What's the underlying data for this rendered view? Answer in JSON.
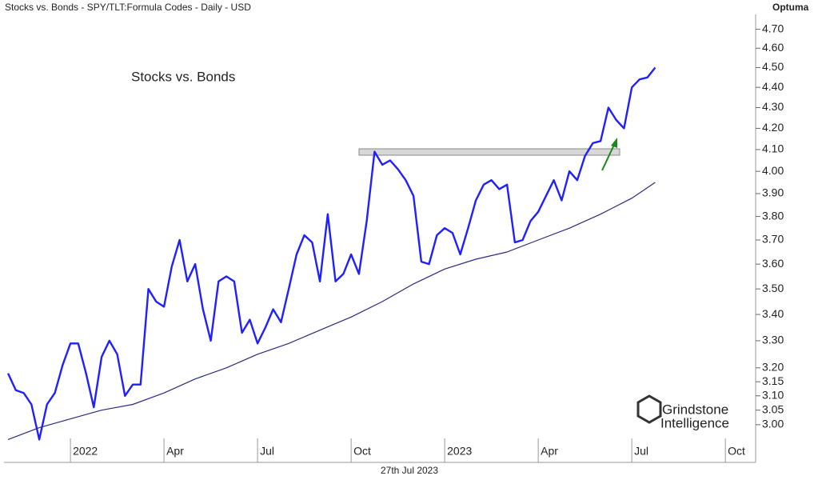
{
  "chart_data": {
    "type": "line",
    "header": "Stocks vs. Bonds - SPY/TLT:Formula Codes - Daily - USD",
    "title": "Stocks vs. Bonds",
    "brand": "Optuma",
    "logo": [
      "Grindstone",
      "Intelligence"
    ],
    "date_label": "27th Jul 2023",
    "log_scale": true,
    "xlim": [
      -2.13,
      21.97
    ],
    "xticks": [
      {
        "value": 0,
        "label": "2022"
      },
      {
        "value": 3,
        "label": "Apr"
      },
      {
        "value": 6,
        "label": "Jul"
      },
      {
        "value": 9,
        "label": "Oct"
      },
      {
        "value": 12,
        "label": "2023"
      },
      {
        "value": 15,
        "label": "Apr"
      },
      {
        "value": 18,
        "label": "Jul"
      },
      {
        "value": 21,
        "label": "Oct"
      }
    ],
    "ylim": [
      2.935,
      4.78
    ],
    "yticks": [
      {
        "value": 3.0,
        "label": "3.00"
      },
      3.05,
      {
        "value": 3.1,
        "label": "3.10"
      },
      3.15,
      {
        "value": 3.2,
        "label": "3.20"
      },
      {
        "value": 3.3,
        "label": "3.30"
      },
      {
        "value": 3.4,
        "label": "3.40"
      },
      {
        "value": 3.5,
        "label": "3.50"
      },
      {
        "value": 3.6,
        "label": "3.60"
      },
      {
        "value": 3.7,
        "label": "3.70"
      },
      {
        "value": 3.8,
        "label": "3.80"
      },
      {
        "value": 3.9,
        "label": "3.90"
      },
      {
        "value": 4.0,
        "label": "4.00"
      },
      {
        "value": 4.1,
        "label": "4.10"
      },
      {
        "value": 4.2,
        "label": "4.20"
      },
      {
        "value": 4.3,
        "label": "4.30"
      },
      {
        "value": 4.4,
        "label": "4.40"
      },
      {
        "value": 4.5,
        "label": "4.50"
      },
      {
        "value": 4.6,
        "label": "4.60"
      },
      {
        "value": 4.7,
        "label": "4.70"
      }
    ],
    "series": [
      {
        "color": "#1f1fff",
        "width": 2.4,
        "x": [
          -2,
          -1.75,
          -1.5,
          -1.25,
          -1,
          -0.75,
          -0.5,
          -0.25,
          0,
          0.25,
          0.5,
          0.75,
          1,
          1.25,
          1.5,
          1.75,
          2,
          2.25,
          2.5,
          2.75,
          3,
          3.25,
          3.5,
          3.75,
          4,
          4.25,
          4.5,
          4.75,
          5,
          5.25,
          5.5,
          5.75,
          6,
          6.25,
          6.5,
          6.75,
          7,
          7.25,
          7.5,
          7.75,
          8,
          8.25,
          8.5,
          8.75,
          9,
          9.25,
          9.5,
          9.75,
          10,
          10.25,
          10.5,
          10.75,
          11,
          11.25,
          11.5,
          11.75,
          12,
          12.25,
          12.5,
          12.75,
          13,
          13.25,
          13.5,
          13.75,
          14,
          14.25,
          14.5,
          14.75,
          15,
          15.25,
          15.5,
          15.75,
          16,
          16.25,
          16.5,
          16.75,
          17,
          17.25,
          17.5,
          17.75,
          18,
          18.25,
          18.5,
          18.75
        ],
        "values": [
          3.18,
          3.12,
          3.11,
          3.07,
          2.95,
          3.07,
          3.11,
          3.21,
          3.29,
          3.29,
          3.18,
          3.06,
          3.24,
          3.3,
          3.25,
          3.1,
          3.14,
          3.14,
          3.5,
          3.45,
          3.43,
          3.59,
          3.7,
          3.53,
          3.6,
          3.42,
          3.3,
          3.53,
          3.55,
          3.53,
          3.33,
          3.38,
          3.29,
          3.35,
          3.42,
          3.37,
          3.5,
          3.64,
          3.72,
          3.69,
          3.53,
          3.81,
          3.53,
          3.56,
          3.64,
          3.56,
          3.78,
          4.09,
          4.03,
          4.05,
          4.01,
          3.96,
          3.89,
          3.61,
          3.6,
          3.72,
          3.75,
          3.73,
          3.64,
          3.75,
          3.87,
          3.94,
          3.96,
          3.92,
          3.94,
          3.69,
          3.7,
          3.78,
          3.82,
          3.89,
          3.96,
          3.87,
          4.0,
          3.96,
          4.07,
          4.13,
          4.14,
          4.3,
          4.24,
          4.2,
          4.4,
          4.44,
          4.45,
          4.5
        ]
      },
      {
        "color": "#2b2b80",
        "width": 1.2,
        "x": [
          -2,
          -1,
          0,
          1,
          2,
          3,
          4,
          5,
          6,
          7,
          8,
          9,
          10,
          11,
          12,
          13,
          14,
          15,
          16,
          17,
          18,
          18.75
        ],
        "values": [
          2.95,
          2.99,
          3.02,
          3.05,
          3.07,
          3.11,
          3.16,
          3.2,
          3.25,
          3.29,
          3.34,
          3.39,
          3.45,
          3.52,
          3.58,
          3.62,
          3.65,
          3.7,
          3.75,
          3.81,
          3.88,
          3.95
        ]
      }
    ]
  }
}
